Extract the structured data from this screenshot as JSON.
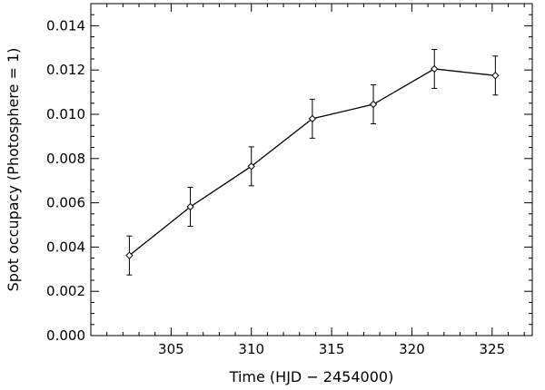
{
  "chart_data": {
    "type": "line",
    "title": "",
    "xlabel": "Time (HJD − 2454000)",
    "ylabel": "Spot occupacy (Photosphere = 1)",
    "xlim": [
      300,
      327.5
    ],
    "ylim": [
      0.0,
      0.015
    ],
    "x_ticks": [
      {
        "value": 305,
        "label": "305"
      },
      {
        "value": 310,
        "label": "310"
      },
      {
        "value": 315,
        "label": "315"
      },
      {
        "value": 320,
        "label": "320"
      },
      {
        "value": 325,
        "label": "325"
      }
    ],
    "y_ticks": [
      {
        "value": 0.0,
        "label": "0.000"
      },
      {
        "value": 0.002,
        "label": "0.002"
      },
      {
        "value": 0.004,
        "label": "0.004"
      },
      {
        "value": 0.006,
        "label": "0.006"
      },
      {
        "value": 0.008,
        "label": "0.008"
      },
      {
        "value": 0.01,
        "label": "0.010"
      },
      {
        "value": 0.012,
        "label": "0.012"
      },
      {
        "value": 0.014,
        "label": "0.014"
      }
    ],
    "series": [
      {
        "marker": "diamond",
        "color": "#000000",
        "points": [
          {
            "x": 302.4,
            "y": 0.00362,
            "err": 0.00088
          },
          {
            "x": 306.2,
            "y": 0.00582,
            "err": 0.00088
          },
          {
            "x": 310.0,
            "y": 0.00765,
            "err": 0.00088
          },
          {
            "x": 313.8,
            "y": 0.0098,
            "err": 0.00088
          },
          {
            "x": 317.6,
            "y": 0.01045,
            "err": 0.00088
          },
          {
            "x": 321.4,
            "y": 0.01205,
            "err": 0.00088
          },
          {
            "x": 325.2,
            "y": 0.01175,
            "err": 0.00088
          }
        ]
      }
    ],
    "grid": false,
    "legend": "none"
  }
}
